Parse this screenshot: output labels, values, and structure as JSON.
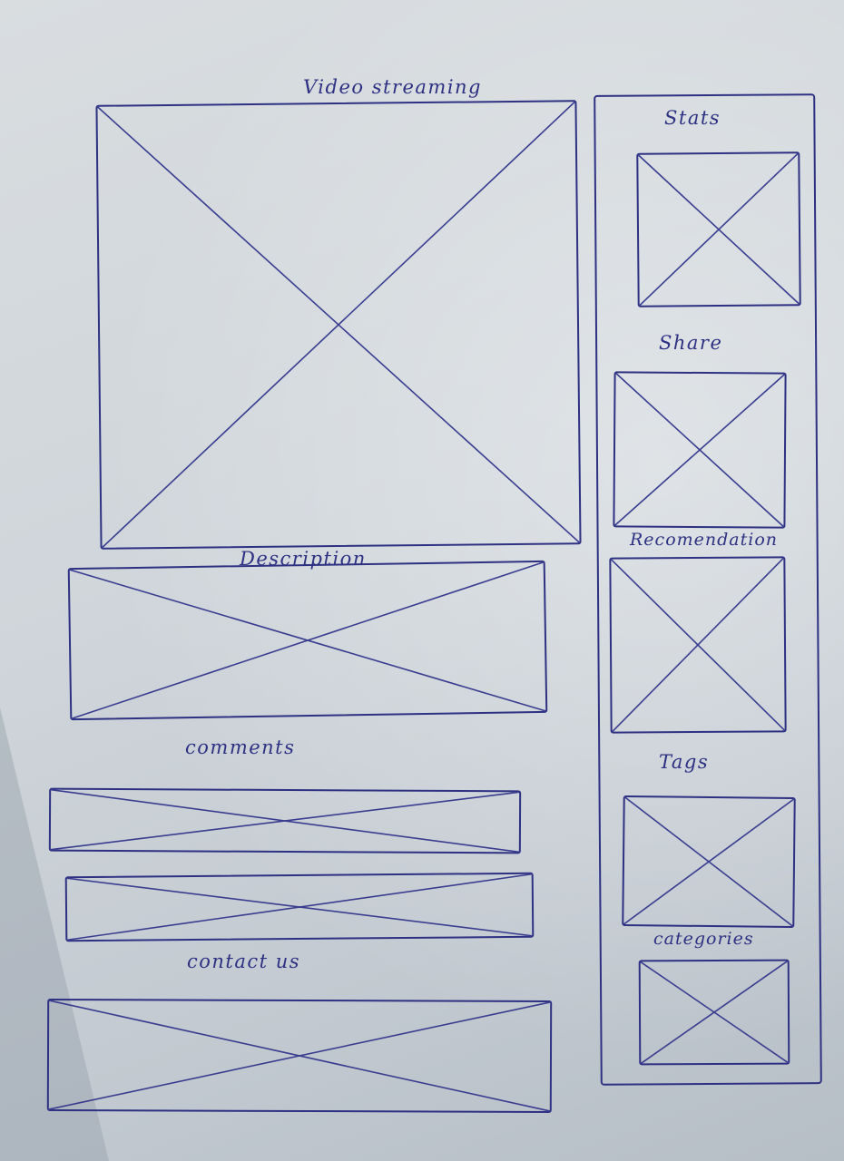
{
  "main": {
    "video_label": "Video streaming",
    "description_label": "Description",
    "comments_label": "comments",
    "contact_label": "contact us"
  },
  "sidebar": {
    "stats_label": "Stats",
    "share_label": "Share",
    "recommendation_label": "Recomendation",
    "tags_label": "Tags",
    "categories_label": "categories"
  },
  "colors": {
    "ink": "#2e3182",
    "paper": "#d2d8dd"
  }
}
